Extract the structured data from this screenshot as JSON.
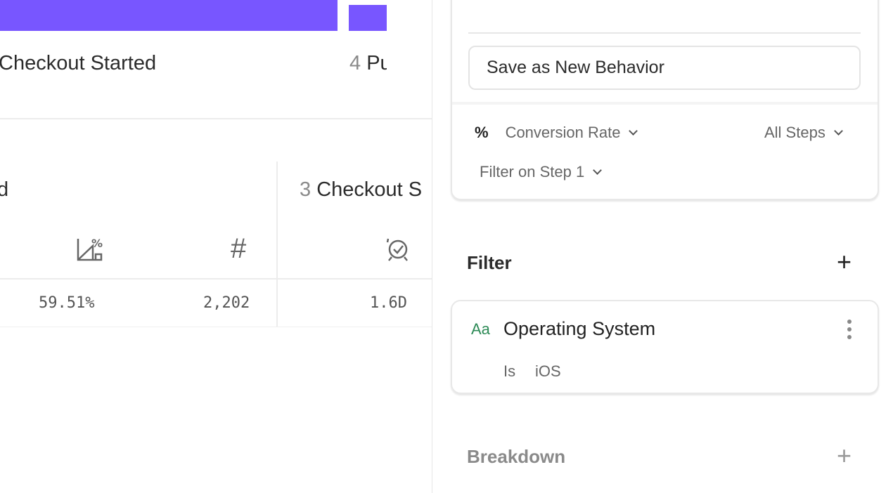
{
  "funnel": {
    "colors": {
      "bar": "#7856ff"
    },
    "steps": [
      {
        "label": "Checkout Started"
      },
      {
        "number": "4",
        "label": "Pu"
      }
    ]
  },
  "table": {
    "col_a": {
      "header_suffix": "d",
      "icons": [
        "conversion-rate-icon",
        "count-icon"
      ],
      "values": [
        "59.51%",
        "2,202"
      ]
    },
    "col_b": {
      "number": "3",
      "header": "Checkout S",
      "icons": [
        "time-to-convert-icon"
      ],
      "values": [
        "1.6D"
      ]
    }
  },
  "sidebar": {
    "save_button": "Save as New Behavior",
    "measure_icon": "%",
    "measure": "Conversion Rate",
    "steps": "All Steps",
    "filter_step": "Filter on Step 1",
    "filter_section": "Filter",
    "filter": {
      "type_icon": "Aa",
      "property": "Operating System",
      "operator": "Is",
      "value": "iOS",
      "type_color": "#2e8b57"
    },
    "breakdown_section": "Breakdown"
  }
}
